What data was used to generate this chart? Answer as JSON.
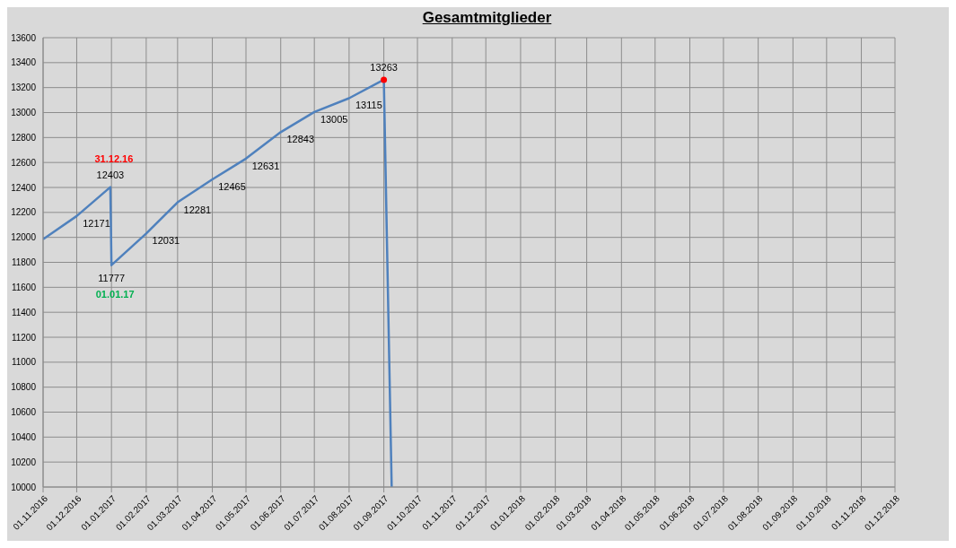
{
  "chart_data": {
    "type": "line",
    "title": "Gesamtmitglieder",
    "x": [
      "2016-11-01",
      "2016-12-01",
      "2016-12-31",
      "2017-01-01",
      "2017-02-01",
      "2017-03-01",
      "2017-04-01",
      "2017-05-01",
      "2017-06-01",
      "2017-07-01",
      "2017-08-01",
      "2017-09-01",
      "2017-09-08"
    ],
    "series": [
      {
        "color": "#4f81bd",
        "values": [
          11985,
          12171,
          12403,
          11777,
          12031,
          12281,
          12465,
          12631,
          12843,
          13005,
          13115,
          13263,
          10000
        ],
        "value_labels": [
          null,
          "12171",
          "12403",
          "11777",
          "12031",
          "12281",
          "12465",
          "12631",
          "12843",
          "13005",
          "13115",
          "13263",
          null
        ]
      },
      {
        "type": "scatter",
        "color": "#ff0000",
        "x": [
          "2017-09-01"
        ],
        "values": [
          13263
        ],
        "marker": "circle"
      }
    ],
    "annotations": [
      {
        "text": "31.12.16",
        "x": "2016-12-31",
        "y": 12403
      },
      {
        "text": "01.01.17",
        "x": "2017-01-01",
        "y": 11777
      }
    ],
    "xlim": [
      "2016-11-01",
      "2018-12-01"
    ],
    "xticks": [
      {
        "value": "2016-11-01",
        "label": "01.11.2016"
      },
      {
        "value": "2016-12-01",
        "label": "01.12.2016"
      },
      {
        "value": "2017-01-01",
        "label": "01.01.2017"
      },
      {
        "value": "2017-02-01",
        "label": "01.02.2017"
      },
      {
        "value": "2017-03-01",
        "label": "01.03.2017"
      },
      {
        "value": "2017-04-01",
        "label": "01.04.2017"
      },
      {
        "value": "2017-05-01",
        "label": "01.05.2017"
      },
      {
        "value": "2017-06-01",
        "label": "01.06.2017"
      },
      {
        "value": "2017-07-01",
        "label": "01.07.2017"
      },
      {
        "value": "2017-08-01",
        "label": "01.08.2017"
      },
      {
        "value": "2017-09-01",
        "label": "01.09.2017"
      },
      {
        "value": "2017-10-01",
        "label": "01.10.2017"
      },
      {
        "value": "2017-11-01",
        "label": "01.11.2017"
      },
      {
        "value": "2017-12-01",
        "label": "01.12.2017"
      },
      {
        "value": "2018-01-01",
        "label": "01.01.2018"
      },
      {
        "value": "2018-02-01",
        "label": "01.02.2018"
      },
      {
        "value": "2018-03-01",
        "label": "01.03.2018"
      },
      {
        "value": "2018-04-01",
        "label": "01.04.2018"
      },
      {
        "value": "2018-05-01",
        "label": "01.05.2018"
      },
      {
        "value": "2018-06-01",
        "label": "01.06.2018"
      },
      {
        "value": "2018-07-01",
        "label": "01.07.2018"
      },
      {
        "value": "2018-08-01",
        "label": "01.08.2018"
      },
      {
        "value": "2018-09-01",
        "label": "01.09.2018"
      },
      {
        "value": "2018-10-01",
        "label": "01.10.2018"
      },
      {
        "value": "2018-11-01",
        "label": "01.11.2018"
      },
      {
        "value": "2018-12-01",
        "label": "01.12.2018"
      }
    ],
    "ylim": [
      10000,
      13600
    ],
    "yticks": [
      10000,
      10200,
      10400,
      10600,
      10800,
      11000,
      11200,
      11400,
      11600,
      11800,
      12000,
      12200,
      12400,
      12600,
      12800,
      13000,
      13200,
      13400,
      13600
    ],
    "grid": true,
    "legend": false,
    "marker": "none",
    "line_style": "solid"
  }
}
